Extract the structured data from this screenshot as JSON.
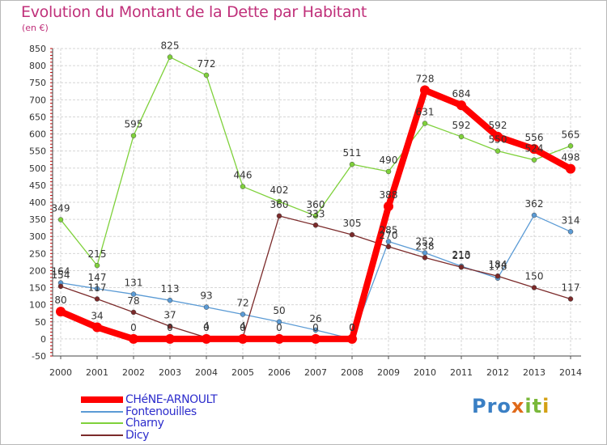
{
  "title": "Evolution du Montant de la Dette par Habitant",
  "unit": "(en €)",
  "logo": "Proxiti",
  "chart_data": {
    "type": "line",
    "title": "Evolution du Montant de la Dette par Habitant",
    "ylabel": "(en €)",
    "xlabel": "",
    "ylim": [
      -50,
      850
    ],
    "yticks": [
      -50,
      0,
      50,
      100,
      150,
      200,
      250,
      300,
      350,
      400,
      450,
      500,
      550,
      600,
      650,
      700,
      750,
      800,
      850
    ],
    "x": [
      "2000",
      "2001",
      "2002",
      "2003",
      "2004",
      "2005",
      "2006",
      "2007",
      "2008",
      "2009",
      "2010",
      "2011",
      "2012",
      "2013",
      "2014"
    ],
    "grid": true,
    "legend": "bottom-left",
    "series": [
      {
        "name": "CHéNE-ARNOULT",
        "color": "#ff0000",
        "values": [
          80,
          34,
          0,
          0,
          0,
          0,
          0,
          0,
          0,
          388,
          728,
          684,
          592,
          556,
          498
        ]
      },
      {
        "name": "Fontenouilles",
        "color": "#5b9bd5",
        "values": [
          164,
          147,
          131,
          113,
          93,
          72,
          50,
          26,
          0,
          285,
          252,
          213,
          178,
          362,
          314
        ]
      },
      {
        "name": "Charny",
        "color": "#7fd13b",
        "values": [
          349,
          215,
          595,
          825,
          772,
          446,
          402,
          360,
          511,
          490,
          631,
          592,
          550,
          524,
          565
        ]
      },
      {
        "name": "Dicy",
        "color": "#7b2a2a",
        "values": [
          154,
          117,
          78,
          37,
          4,
          4,
          360,
          333,
          305,
          270,
          238,
          210,
          184,
          150,
          117
        ]
      }
    ]
  }
}
